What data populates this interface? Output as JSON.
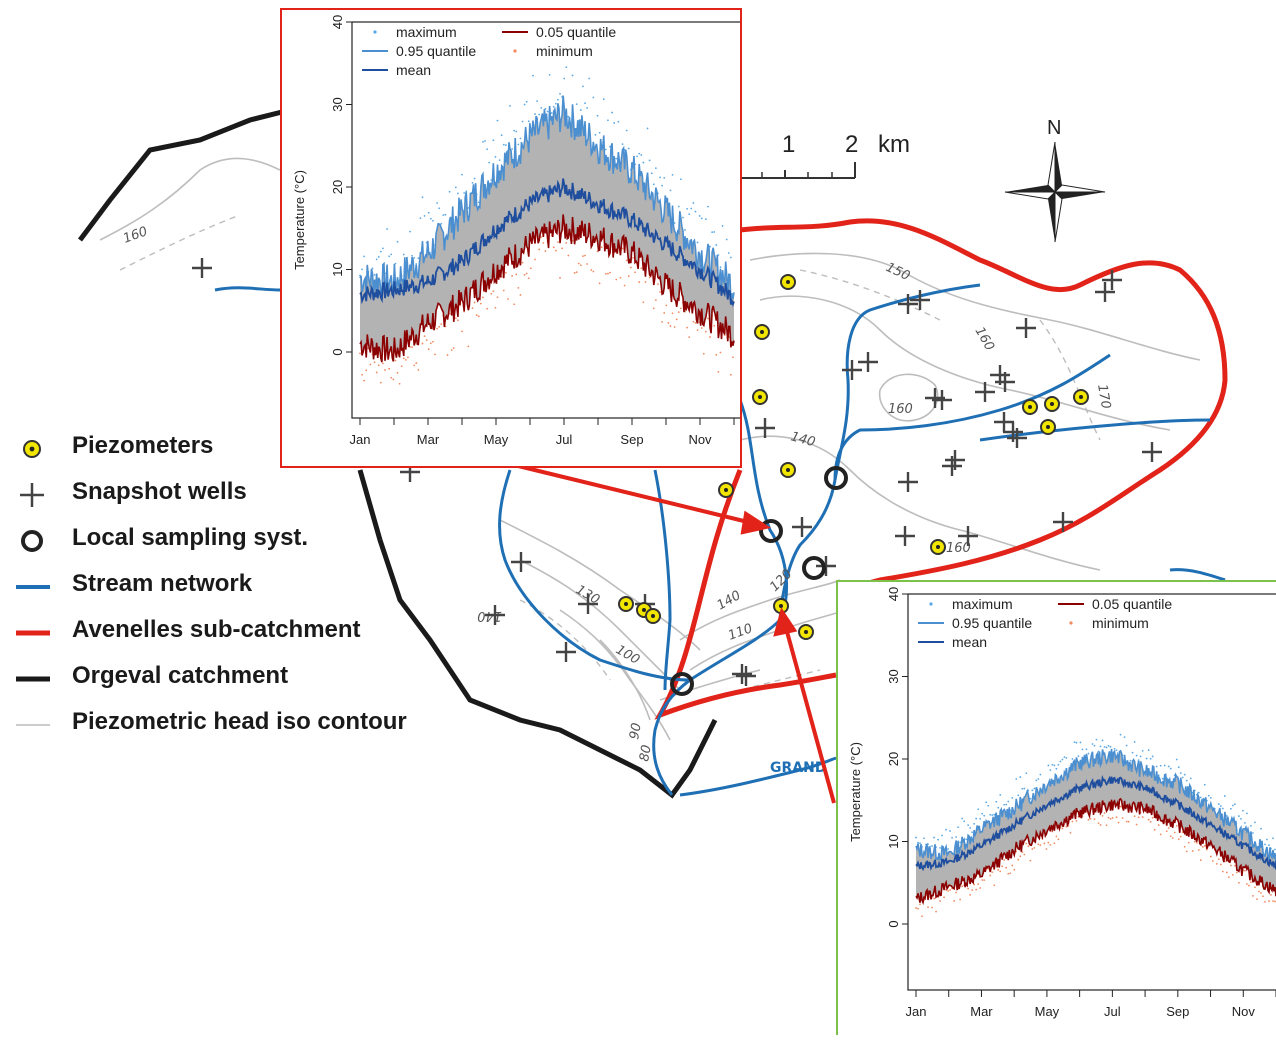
{
  "legend": {
    "items": [
      {
        "label": "Piezometers",
        "symbol": "piezometer-icon",
        "color": "#f2e600"
      },
      {
        "label": "Snapshot wells",
        "symbol": "cross-icon",
        "color": "#444444"
      },
      {
        "label": "Local sampling syst.",
        "symbol": "open-circle-icon",
        "color": "#222222"
      },
      {
        "label": "Stream network",
        "symbol": "blue-line-icon",
        "color": "#1f6fb5"
      },
      {
        "label": "Avenelles sub-catchment",
        "symbol": "red-line-icon",
        "color": "#e2231a"
      },
      {
        "label": "Orgeval catchment",
        "symbol": "black-line-icon",
        "color": "#1a1a1a"
      },
      {
        "label": "Piezometric head iso contour",
        "symbol": "gray-line-icon",
        "color": "#bbbbbb"
      }
    ]
  },
  "map": {
    "scale_bar": {
      "labels": [
        "1",
        "2"
      ],
      "unit": "km"
    },
    "north_label": "N",
    "contour_labels": [
      "160",
      "150",
      "160",
      "160",
      "170",
      "140",
      "130",
      "140",
      "120",
      "110",
      "100",
      "140",
      "90",
      "80",
      "160"
    ],
    "river_label": "GRAND"
  },
  "chart_data": [
    {
      "type": "line",
      "ylabel": "Temperature (°C)",
      "ylim": [
        -8,
        40
      ],
      "yticks": [
        0,
        10,
        20,
        30,
        40
      ],
      "x_tick_labels": [
        "Jan",
        "Mar",
        "May",
        "Jul",
        "Sep",
        "Nov"
      ],
      "legend": [
        "maximum",
        "0.95 quantile",
        "mean",
        "0.05 quantile",
        "minimum"
      ],
      "legend_placement": "top",
      "series": [
        {
          "name": "mean",
          "color": "#1f4e9e",
          "x": [
            1,
            2,
            3,
            4,
            5,
            6,
            7,
            8,
            9,
            10,
            11,
            12
          ],
          "values": [
            7,
            7.5,
            8.5,
            11,
            15,
            18,
            20,
            18,
            16,
            13,
            10,
            6.5
          ]
        },
        {
          "name": "0.95 quantile",
          "color": "#4b8fd0",
          "x": [
            1,
            2,
            3,
            4,
            5,
            6,
            7,
            8,
            9,
            10,
            11,
            12
          ],
          "values": [
            9,
            8.5,
            12,
            17,
            22,
            26,
            29,
            25,
            22,
            17,
            12,
            8
          ]
        },
        {
          "name": "0.05 quantile",
          "color": "#8b0000",
          "x": [
            1,
            2,
            3,
            4,
            5,
            6,
            7,
            8,
            9,
            10,
            11,
            12
          ],
          "values": [
            1,
            0,
            3.5,
            6,
            10,
            13,
            15,
            14,
            12,
            8,
            5,
            2
          ]
        }
      ]
    },
    {
      "type": "line",
      "ylabel": "Temperature (°C)",
      "ylim": [
        -8,
        40
      ],
      "yticks": [
        0,
        10,
        20,
        30,
        40
      ],
      "x_tick_labels": [
        "Jan",
        "Mar",
        "May",
        "Jul",
        "Sep",
        "Nov"
      ],
      "legend": [
        "maximum",
        "0.95 quantile",
        "mean",
        "0.05 quantile",
        "minimum"
      ],
      "legend_placement": "top",
      "series": [
        {
          "name": "mean",
          "color": "#1f4e9e",
          "x": [
            1,
            2,
            3,
            4,
            5,
            6,
            7,
            8,
            9,
            10,
            11,
            12
          ],
          "values": [
            7,
            7.5,
            9.5,
            12,
            14.5,
            16.5,
            17.5,
            16.5,
            14.5,
            12,
            9.5,
            7
          ]
        },
        {
          "name": "0.95 quantile",
          "color": "#4b8fd0",
          "x": [
            1,
            2,
            3,
            4,
            5,
            6,
            7,
            8,
            9,
            10,
            11,
            12
          ],
          "values": [
            9,
            8.5,
            11.5,
            14,
            17,
            19.5,
            20.5,
            18.5,
            17,
            14,
            11,
            8
          ]
        },
        {
          "name": "0.05 quantile",
          "color": "#8b0000",
          "x": [
            1,
            2,
            3,
            4,
            5,
            6,
            7,
            8,
            9,
            10,
            11,
            12
          ],
          "values": [
            3,
            4.5,
            6,
            9,
            11.5,
            13.5,
            14.5,
            14,
            12,
            9.5,
            6.5,
            4
          ]
        }
      ]
    }
  ]
}
